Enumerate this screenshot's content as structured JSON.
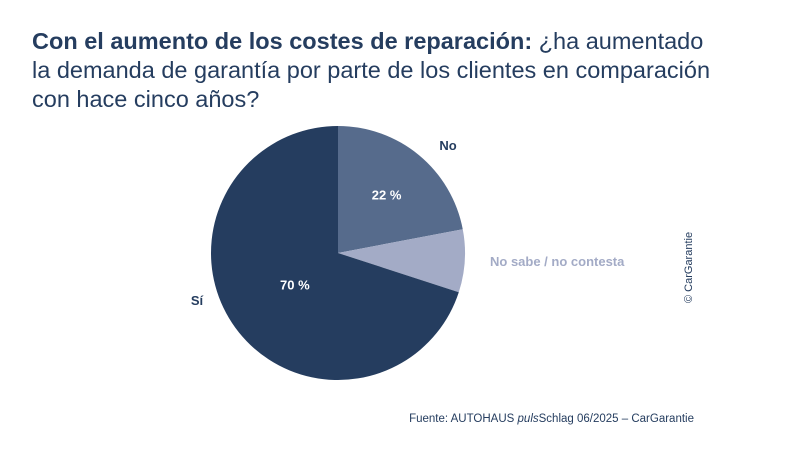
{
  "title": {
    "bold_part": "Con el aumento de los costes de reparación:",
    "normal_part_1": "¿ha aumentado",
    "normal_part_2": "la demanda de garantía por parte de los clientes en comparación",
    "normal_part_3": "con hace cinco años?"
  },
  "chart_data": {
    "type": "pie",
    "title": "",
    "slices": [
      {
        "name": "No",
        "value": 22,
        "label": "22 %",
        "color": "#566b8c",
        "label_color": "#253d5f"
      },
      {
        "name": "No sabe / no contesta",
        "value": 8,
        "label": "",
        "color": "#a3abc6",
        "label_color": "#a3abc6"
      },
      {
        "name": "Sí",
        "value": 70,
        "label": "70 %",
        "color": "#253d5f",
        "label_color": "#253d5f"
      }
    ],
    "start_angle": "12 o'clock",
    "direction": "clockwise",
    "legend": "none (direct labels)"
  },
  "source": {
    "prefix": "Fuente: AUTOHAUS ",
    "italic": "puls",
    "suffix": "Schlag 06/2025 – CarGarantie"
  },
  "copyright": "© CarGarantie"
}
